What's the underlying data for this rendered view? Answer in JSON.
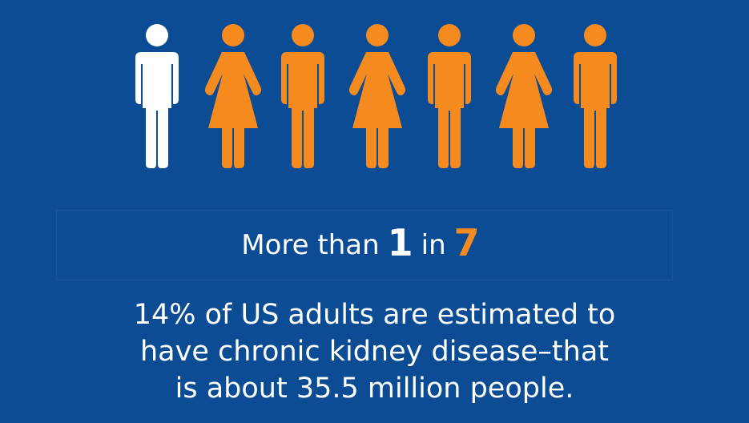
{
  "figures": {
    "highlighted_count": 1,
    "total_count": 7,
    "highlight_color": "#ffffff",
    "other_color": "#f58a1f",
    "pattern": [
      "male",
      "female",
      "male",
      "female",
      "male",
      "female",
      "male"
    ]
  },
  "headline": {
    "prefix": "More than",
    "numerator": "1",
    "middle": "in",
    "denominator": "7"
  },
  "description": {
    "line1": "14% of US adults are estimated to",
    "line2": "have chronic kidney disease–that",
    "line3": "is about 35.5 million people."
  },
  "colors": {
    "background": "#0b4c94",
    "accent": "#f58a1f",
    "text": "#ffffff"
  }
}
